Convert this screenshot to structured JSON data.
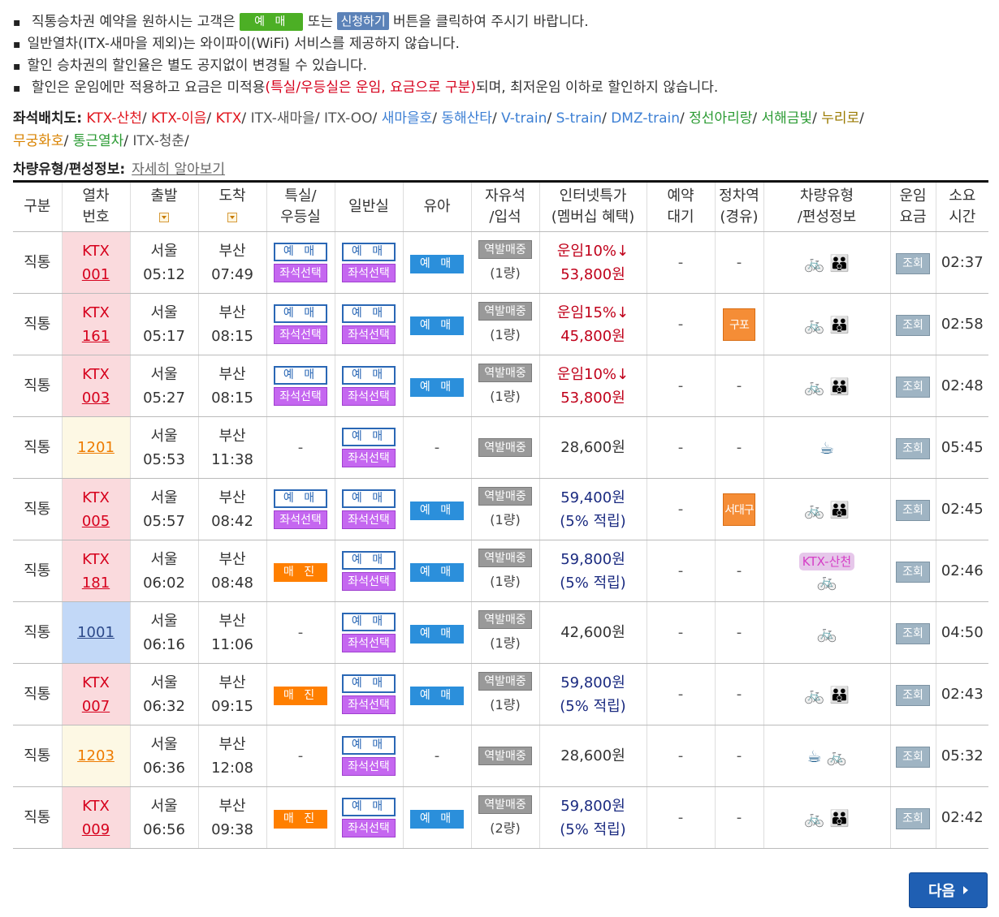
{
  "notices": {
    "n1_pre": "직통승차권 예약을 원하시는 고객은",
    "n1_btn1": "예 매",
    "n1_mid": "또는",
    "n1_btn2": "신청하기",
    "n1_post": "버튼을 클릭하여 주시기 바랍니다.",
    "n2": "일반열차(ITX-새마을 제외)는 와이파이(WiFi) 서비스를 제공하지 않습니다.",
    "n3": "할인 승차권의 할인율은 별도 공지없이 변경될 수 있습니다.",
    "n4_pre": "할인은 운임에만 적용하고 요금은 미적용",
    "n4_red": "(특실/우등실은 운임, 요금으로 구분)",
    "n4_post": "되며, 최저운임 이하로 할인하지 않습니다."
  },
  "seatmap": {
    "label": "좌석배치도:",
    "links": [
      {
        "text": "KTX-산천",
        "color": "#e0151d"
      },
      {
        "text": "KTX-이음",
        "color": "#e0151d"
      },
      {
        "text": "KTX",
        "color": "#e0151d"
      },
      {
        "text": "ITX-새마을",
        "color": "#555555"
      },
      {
        "text": "ITX-OO",
        "color": "#555555"
      },
      {
        "text": "새마을호",
        "color": "#3c7fd4"
      },
      {
        "text": "동해산타",
        "color": "#3c7fd4"
      },
      {
        "text": "V-train",
        "color": "#3c7fd4"
      },
      {
        "text": "S-train",
        "color": "#3c7fd4"
      },
      {
        "text": "DMZ-train",
        "color": "#3c7fd4"
      },
      {
        "text": "정선아리랑",
        "color": "#2b9b33"
      },
      {
        "text": "서해금빛",
        "color": "#2b9b33"
      },
      {
        "text": "누리로",
        "color": "#9a7a00"
      },
      {
        "text": "무궁화호",
        "color": "#d98300"
      },
      {
        "text": "통근열차",
        "color": "#2b9b33"
      },
      {
        "text": "ITX-청춘",
        "color": "#555555"
      }
    ]
  },
  "typeinfo": {
    "label": "차량유형/편성정보:",
    "link": "자세히 알아보기"
  },
  "table": {
    "headers": {
      "type": "구분",
      "trainno": [
        "열차",
        "번호"
      ],
      "dep": "출발",
      "arr": "도착",
      "special": [
        "특실/",
        "우등실"
      ],
      "general": "일반실",
      "infant": "유아",
      "free": [
        "자유석",
        "/입석"
      ],
      "internet": [
        "인터넷특가",
        "(멤버십 혜택)"
      ],
      "waiting": [
        "예약",
        "대기"
      ],
      "stops": [
        "정차역",
        "(경유)"
      ],
      "vehicle": [
        "차량유형",
        "/편성정보"
      ],
      "fare": [
        "운임",
        "요금"
      ],
      "duration": [
        "소요",
        "시간"
      ]
    },
    "labels": {
      "reserve": "예 매",
      "seat_select": "좌석선택",
      "soldout": "매 진",
      "station_sale": "역발매중",
      "inquiry": "조회",
      "dash": "-",
      "ktx_sancheon": "KTX-산천"
    },
    "rows": [
      {
        "type": "직통",
        "cls": "ktx",
        "name": "KTX",
        "no": "001",
        "dep_st": "서울",
        "dep_t": "05:12",
        "arr_st": "부산",
        "arr_t": "07:49",
        "special": "reserve",
        "general": true,
        "infant": true,
        "free_qty": "(1량)",
        "price_top": "운임10%↓",
        "price_bot": "53,800원",
        "price_style": "red",
        "stop": "",
        "icons": [
          "bike",
          "family"
        ],
        "tag": "",
        "dur": "02:37"
      },
      {
        "type": "직통",
        "cls": "ktx",
        "name": "KTX",
        "no": "161",
        "dep_st": "서울",
        "dep_t": "05:17",
        "arr_st": "부산",
        "arr_t": "08:15",
        "special": "reserve",
        "general": true,
        "infant": true,
        "free_qty": "(1량)",
        "price_top": "운임15%↓",
        "price_bot": "45,800원",
        "price_style": "red",
        "stop": "구포",
        "icons": [
          "bike",
          "family"
        ],
        "tag": "",
        "dur": "02:58"
      },
      {
        "type": "직통",
        "cls": "ktx",
        "name": "KTX",
        "no": "003",
        "dep_st": "서울",
        "dep_t": "05:27",
        "arr_st": "부산",
        "arr_t": "08:15",
        "special": "reserve",
        "general": true,
        "infant": true,
        "free_qty": "(1량)",
        "price_top": "운임10%↓",
        "price_bot": "53,800원",
        "price_style": "red",
        "stop": "",
        "icons": [
          "bike",
          "family"
        ],
        "tag": "",
        "dur": "02:48"
      },
      {
        "type": "직통",
        "cls": "itx",
        "name": "",
        "no": "1201",
        "dep_st": "서울",
        "dep_t": "05:53",
        "arr_st": "부산",
        "arr_t": "11:38",
        "special": "none",
        "general": true,
        "infant": false,
        "free_qty": "",
        "price_top": "",
        "price_bot": "28,600원",
        "price_style": "plain",
        "stop": "",
        "icons": [
          "cafe"
        ],
        "tag": "",
        "dur": "05:45"
      },
      {
        "type": "직통",
        "cls": "ktx",
        "name": "KTX",
        "no": "005",
        "dep_st": "서울",
        "dep_t": "05:57",
        "arr_st": "부산",
        "arr_t": "08:42",
        "special": "reserve",
        "general": true,
        "infant": true,
        "free_qty": "(1량)",
        "price_top": "59,400원",
        "price_bot": "(5% 적립)",
        "price_style": "navy",
        "stop": "서대구",
        "icons": [
          "bike",
          "family"
        ],
        "tag": "",
        "dur": "02:45"
      },
      {
        "type": "직통",
        "cls": "ktx",
        "name": "KTX",
        "no": "181",
        "dep_st": "서울",
        "dep_t": "06:02",
        "arr_st": "부산",
        "arr_t": "08:48",
        "special": "soldout",
        "general": true,
        "infant": true,
        "free_qty": "(1량)",
        "price_top": "59,800원",
        "price_bot": "(5% 적립)",
        "price_style": "navy",
        "stop": "",
        "icons": [
          "bike"
        ],
        "tag": "KTX-산천",
        "dur": "02:46"
      },
      {
        "type": "직통",
        "cls": "mu",
        "name": "",
        "no": "1001",
        "dep_st": "서울",
        "dep_t": "06:16",
        "arr_st": "부산",
        "arr_t": "11:06",
        "special": "none",
        "general": true,
        "infant": true,
        "free_qty": "(1량)",
        "price_top": "",
        "price_bot": "42,600원",
        "price_style": "plain",
        "stop": "",
        "icons": [
          "bike"
        ],
        "tag": "",
        "dur": "04:50"
      },
      {
        "type": "직통",
        "cls": "ktx",
        "name": "KTX",
        "no": "007",
        "dep_st": "서울",
        "dep_t": "06:32",
        "arr_st": "부산",
        "arr_t": "09:15",
        "special": "soldout",
        "general": true,
        "infant": true,
        "free_qty": "(1량)",
        "price_top": "59,800원",
        "price_bot": "(5% 적립)",
        "price_style": "navy",
        "stop": "",
        "icons": [
          "bike",
          "family"
        ],
        "tag": "",
        "dur": "02:43"
      },
      {
        "type": "직통",
        "cls": "itx",
        "name": "",
        "no": "1203",
        "dep_st": "서울",
        "dep_t": "06:36",
        "arr_st": "부산",
        "arr_t": "12:08",
        "special": "none",
        "general": true,
        "infant": false,
        "free_qty": "",
        "price_top": "",
        "price_bot": "28,600원",
        "price_style": "plain",
        "stop": "",
        "icons": [
          "cafe",
          "bike"
        ],
        "tag": "",
        "dur": "05:32"
      },
      {
        "type": "직통",
        "cls": "ktx",
        "name": "KTX",
        "no": "009",
        "dep_st": "서울",
        "dep_t": "06:56",
        "arr_st": "부산",
        "arr_t": "09:38",
        "special": "soldout",
        "general": true,
        "infant": true,
        "free_qty": "(2량)",
        "price_top": "59,800원",
        "price_bot": "(5% 적립)",
        "price_style": "navy",
        "stop": "",
        "icons": [
          "bike",
          "family"
        ],
        "tag": "",
        "dur": "02:42"
      }
    ]
  },
  "next_label": "다음",
  "icon_names": {
    "sort": "sort-down-icon",
    "bike": "bicycle-icon",
    "family": "family-icon",
    "cafe": "coffee-cup-icon",
    "next": "chevron-right-icon"
  }
}
